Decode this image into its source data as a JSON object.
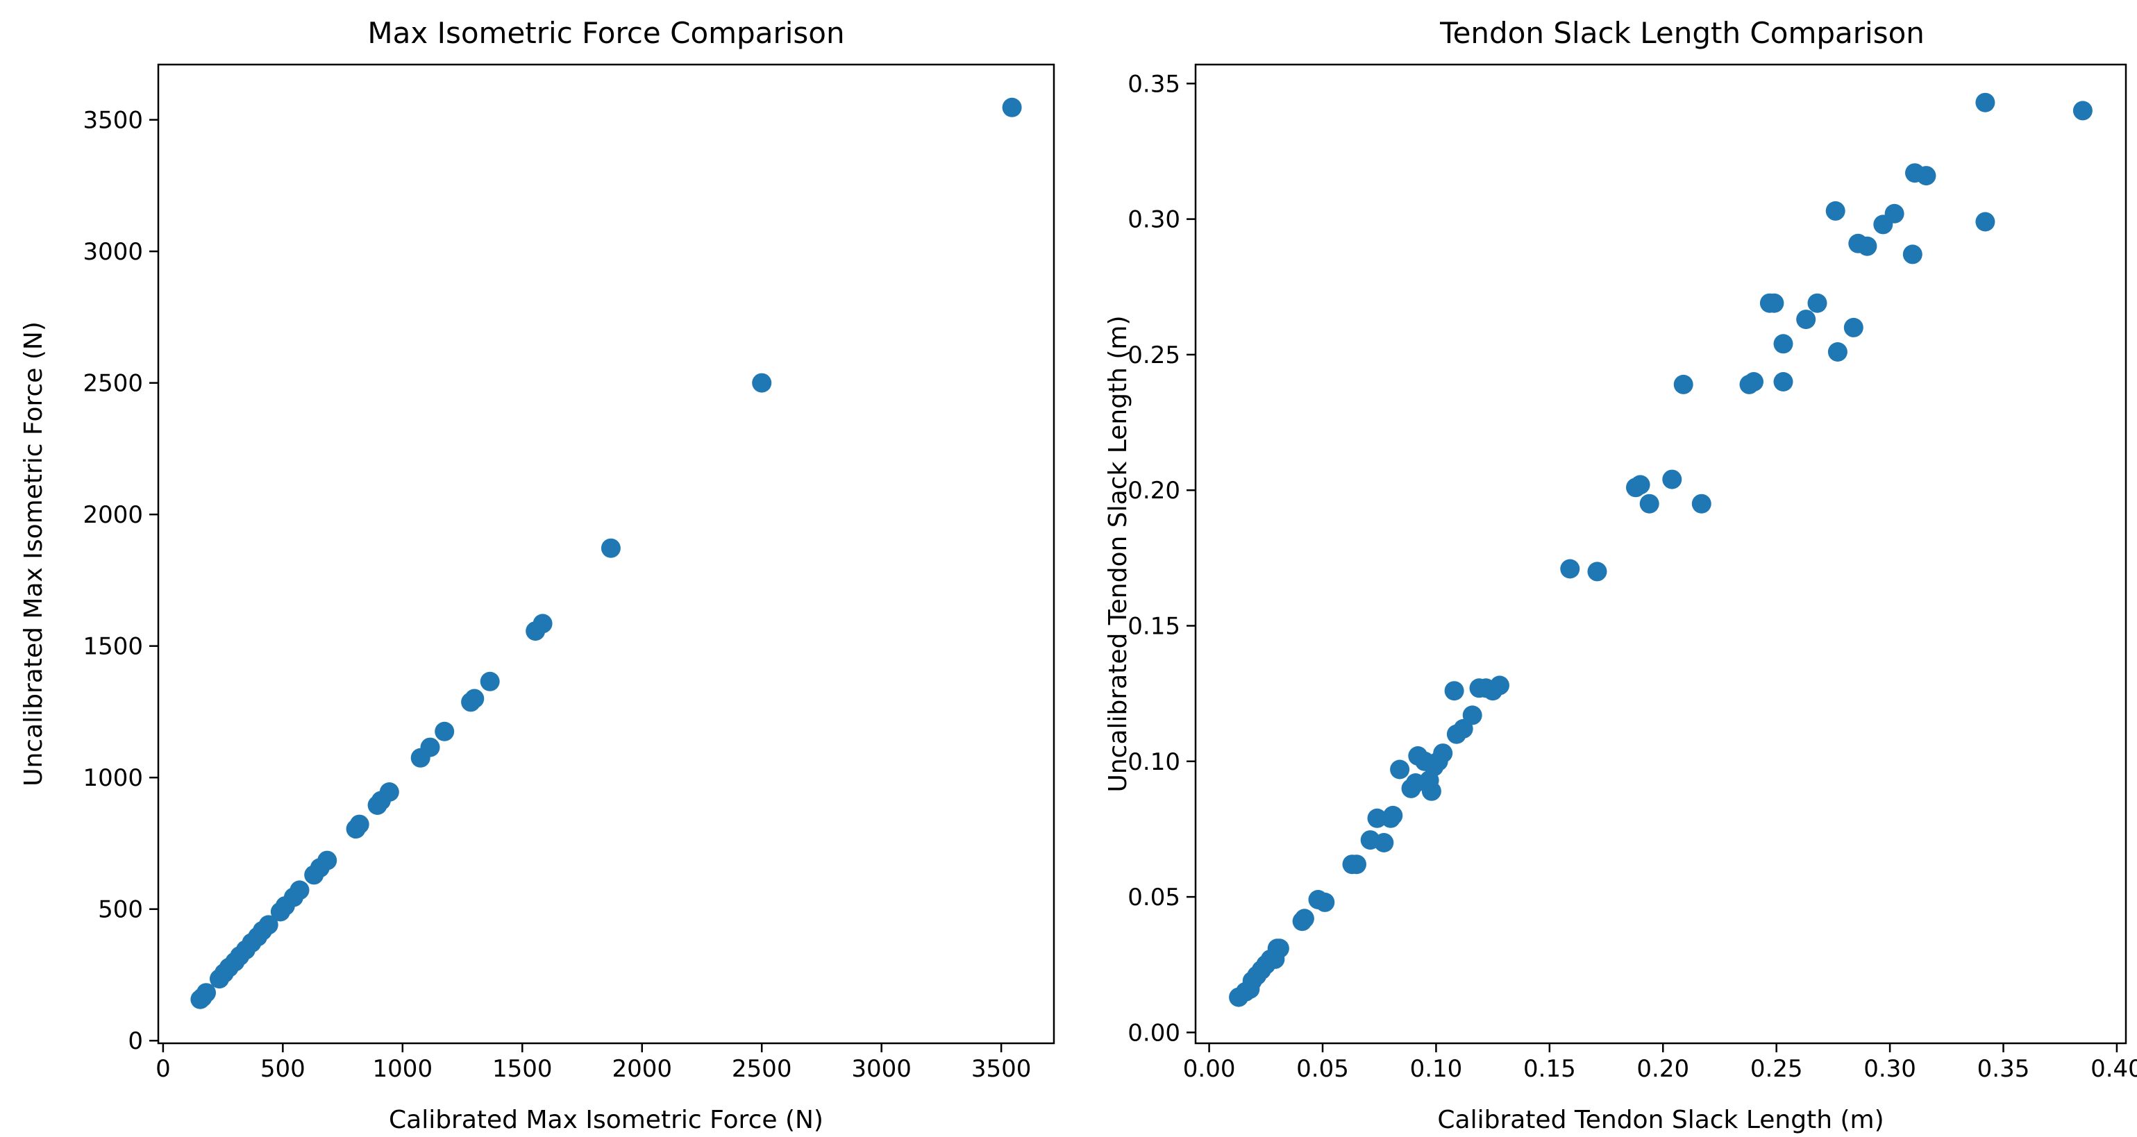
{
  "chart_data": [
    {
      "type": "scatter",
      "title": "Max Isometric Force Comparison",
      "xlabel": "Calibrated Max Isometric Force (N)",
      "ylabel": "Uncalibrated Max Isometric Force (N)",
      "xlim": [
        -20,
        3720
      ],
      "ylim": [
        -10,
        3710
      ],
      "xticks": [
        0,
        500,
        1000,
        1500,
        2000,
        2500,
        3000,
        3500
      ],
      "yticks": [
        0,
        500,
        1000,
        1500,
        2000,
        2500,
        3000,
        3500
      ],
      "xtick_labels": [
        "0",
        "500",
        "1000",
        "1500",
        "2000",
        "2500",
        "3000",
        "3500"
      ],
      "ytick_labels": [
        "0",
        "500",
        "1000",
        "1500",
        "2000",
        "2500",
        "3000",
        "3500"
      ],
      "grid": false,
      "color": "#1f77b4",
      "points": [
        [
          155,
          157
        ],
        [
          165,
          165
        ],
        [
          180,
          182
        ],
        [
          235,
          235
        ],
        [
          255,
          257
        ],
        [
          275,
          278
        ],
        [
          300,
          300
        ],
        [
          320,
          322
        ],
        [
          345,
          345
        ],
        [
          370,
          372
        ],
        [
          395,
          395
        ],
        [
          415,
          418
        ],
        [
          440,
          440
        ],
        [
          490,
          490
        ],
        [
          510,
          512
        ],
        [
          545,
          545
        ],
        [
          570,
          572
        ],
        [
          630,
          630
        ],
        [
          655,
          657
        ],
        [
          685,
          685
        ],
        [
          805,
          805
        ],
        [
          820,
          822
        ],
        [
          895,
          895
        ],
        [
          910,
          912
        ],
        [
          945,
          945
        ],
        [
          1075,
          1075
        ],
        [
          1115,
          1115
        ],
        [
          1175,
          1175
        ],
        [
          1285,
          1287
        ],
        [
          1300,
          1300
        ],
        [
          1365,
          1365
        ],
        [
          1555,
          1557
        ],
        [
          1585,
          1585
        ],
        [
          1870,
          1872
        ],
        [
          2500,
          2500
        ],
        [
          3545,
          3547
        ]
      ]
    },
    {
      "type": "scatter",
      "title": "Tendon Slack Length Comparison",
      "xlabel": "Calibrated Tendon Slack Length (m)",
      "ylabel": "Uncalibrated Tendon Slack Length (m)",
      "xlim": [
        -0.006,
        0.404
      ],
      "ylim": [
        -0.004,
        0.357
      ],
      "xticks": [
        0.0,
        0.05,
        0.1,
        0.15,
        0.2,
        0.25,
        0.3,
        0.35,
        0.4
      ],
      "yticks": [
        0.0,
        0.05,
        0.1,
        0.15,
        0.2,
        0.25,
        0.3,
        0.35
      ],
      "xtick_labels": [
        "0.00",
        "0.05",
        "0.10",
        "0.15",
        "0.20",
        "0.25",
        "0.30",
        "0.35",
        "0.40"
      ],
      "ytick_labels": [
        "0.00",
        "0.05",
        "0.10",
        "0.15",
        "0.20",
        "0.25",
        "0.30",
        "0.35"
      ],
      "grid": false,
      "color": "#1f77b4",
      "points": [
        [
          0.013,
          0.013
        ],
        [
          0.016,
          0.015
        ],
        [
          0.018,
          0.016
        ],
        [
          0.019,
          0.019
        ],
        [
          0.021,
          0.021
        ],
        [
          0.023,
          0.023
        ],
        [
          0.025,
          0.025
        ],
        [
          0.027,
          0.027
        ],
        [
          0.029,
          0.027
        ],
        [
          0.03,
          0.031
        ],
        [
          0.031,
          0.031
        ],
        [
          0.041,
          0.041
        ],
        [
          0.042,
          0.042
        ],
        [
          0.048,
          0.049
        ],
        [
          0.051,
          0.048
        ],
        [
          0.063,
          0.062
        ],
        [
          0.065,
          0.062
        ],
        [
          0.071,
          0.071
        ],
        [
          0.074,
          0.079
        ],
        [
          0.077,
          0.07
        ],
        [
          0.08,
          0.079
        ],
        [
          0.081,
          0.08
        ],
        [
          0.084,
          0.097
        ],
        [
          0.089,
          0.09
        ],
        [
          0.091,
          0.092
        ],
        [
          0.092,
          0.102
        ],
        [
          0.095,
          0.1
        ],
        [
          0.097,
          0.093
        ],
        [
          0.098,
          0.089
        ],
        [
          0.099,
          0.098
        ],
        [
          0.101,
          0.1
        ],
        [
          0.103,
          0.103
        ],
        [
          0.108,
          0.126
        ],
        [
          0.109,
          0.11
        ],
        [
          0.112,
          0.112
        ],
        [
          0.116,
          0.117
        ],
        [
          0.119,
          0.127
        ],
        [
          0.122,
          0.127
        ],
        [
          0.125,
          0.126
        ],
        [
          0.128,
          0.128
        ],
        [
          0.159,
          0.171
        ],
        [
          0.171,
          0.17
        ],
        [
          0.188,
          0.201
        ],
        [
          0.19,
          0.202
        ],
        [
          0.194,
          0.195
        ],
        [
          0.204,
          0.204
        ],
        [
          0.209,
          0.239
        ],
        [
          0.217,
          0.195
        ],
        [
          0.238,
          0.239
        ],
        [
          0.24,
          0.24
        ],
        [
          0.247,
          0.269
        ],
        [
          0.249,
          0.269
        ],
        [
          0.253,
          0.24
        ],
        [
          0.253,
          0.254
        ],
        [
          0.263,
          0.263
        ],
        [
          0.268,
          0.269
        ],
        [
          0.276,
          0.303
        ],
        [
          0.277,
          0.251
        ],
        [
          0.284,
          0.26
        ],
        [
          0.286,
          0.291
        ],
        [
          0.29,
          0.29
        ],
        [
          0.297,
          0.298
        ],
        [
          0.302,
          0.302
        ],
        [
          0.31,
          0.287
        ],
        [
          0.311,
          0.317
        ],
        [
          0.316,
          0.316
        ],
        [
          0.342,
          0.299
        ],
        [
          0.342,
          0.343
        ],
        [
          0.385,
          0.34
        ]
      ]
    }
  ]
}
